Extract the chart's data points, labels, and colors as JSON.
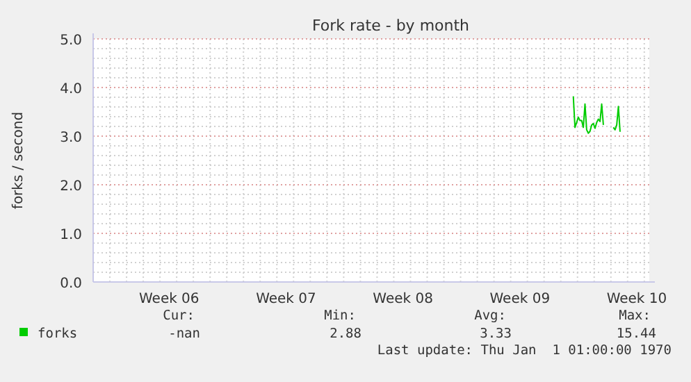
{
  "chart_data": {
    "type": "line",
    "title": "Fork rate - by month",
    "ylabel": "forks / second",
    "ylim": [
      0,
      5
    ],
    "yticks": [
      {
        "value": 0,
        "label": "0.0"
      },
      {
        "value": 0.2,
        "label": null
      },
      {
        "value": 0.4,
        "label": null
      },
      {
        "value": 0.6,
        "label": null
      },
      {
        "value": 0.8,
        "label": null
      },
      {
        "value": 1,
        "label": "1.0"
      },
      {
        "value": 1.2,
        "label": null
      },
      {
        "value": 1.4,
        "label": null
      },
      {
        "value": 1.6,
        "label": null
      },
      {
        "value": 1.8,
        "label": null
      },
      {
        "value": 2,
        "label": "2.0"
      },
      {
        "value": 2.2,
        "label": null
      },
      {
        "value": 2.4,
        "label": null
      },
      {
        "value": 2.6,
        "label": null
      },
      {
        "value": 2.8,
        "label": null
      },
      {
        "value": 3,
        "label": "3.0"
      },
      {
        "value": 3.2,
        "label": null
      },
      {
        "value": 3.4,
        "label": null
      },
      {
        "value": 3.6,
        "label": null
      },
      {
        "value": 3.8,
        "label": null
      },
      {
        "value": 4,
        "label": "4.0"
      },
      {
        "value": 4.2,
        "label": null
      },
      {
        "value": 4.4,
        "label": null
      },
      {
        "value": 4.6,
        "label": null
      },
      {
        "value": 4.8,
        "label": null
      },
      {
        "value": 5,
        "label": "5.0"
      }
    ],
    "grid": true,
    "legend": "bottom left",
    "categories": [
      null,
      null,
      null,
      null,
      null,
      null,
      null,
      null,
      null,
      null,
      null,
      null,
      null,
      null,
      null,
      null,
      null,
      null,
      null,
      null,
      null,
      null,
      null,
      null,
      null,
      null,
      null,
      null,
      null,
      null,
      null,
      null,
      null,
      null,
      null,
      null,
      null,
      null,
      null,
      null,
      null,
      null,
      null,
      null,
      null,
      "Week 06",
      null,
      null,
      null,
      null,
      null,
      null,
      null,
      null,
      null,
      null,
      null,
      null,
      null,
      null,
      null,
      null,
      null,
      null,
      null,
      null,
      null,
      null,
      null,
      null,
      null,
      null,
      null,
      null,
      null,
      null,
      null,
      null,
      null,
      null,
      null,
      null,
      null,
      null,
      null,
      null,
      null,
      null,
      null,
      null,
      null,
      null,
      null,
      null,
      null,
      null,
      null,
      null,
      null,
      null,
      null,
      null,
      null,
      null,
      null,
      null,
      null,
      null,
      null,
      null,
      null,
      null,
      null,
      null,
      null,
      "Week 07",
      null,
      null,
      null,
      null,
      null,
      null,
      null,
      null,
      null,
      null,
      null,
      null,
      null,
      null,
      null,
      null,
      null,
      null,
      null,
      null,
      null,
      null,
      null,
      null,
      null,
      null,
      null,
      null,
      null,
      null,
      null,
      null,
      null,
      null,
      null,
      null,
      null,
      null,
      null,
      null,
      null,
      null,
      null,
      null,
      null,
      null,
      null,
      null,
      null,
      null,
      null,
      null,
      null,
      null,
      null,
      null,
      null,
      null,
      null,
      null,
      null,
      null,
      null,
      null,
      null,
      null,
      null,
      null,
      null,
      "Week 08",
      null,
      null,
      null,
      null,
      null,
      null,
      null,
      null,
      null,
      null,
      null,
      null,
      null,
      null,
      null,
      null,
      null,
      null,
      null,
      null,
      null,
      null,
      null,
      null,
      null,
      null,
      null,
      null,
      null,
      null,
      null,
      null,
      null,
      null,
      null,
      null,
      null,
      null,
      null,
      null,
      null,
      null,
      null,
      null,
      null,
      null,
      null,
      null,
      null,
      null,
      null,
      null,
      null,
      null,
      null,
      null,
      null,
      null,
      null,
      null,
      null,
      null,
      null,
      null,
      null,
      null,
      null,
      null,
      null,
      "Week 09",
      null,
      null,
      null,
      null,
      null,
      null,
      null,
      null,
      null,
      null,
      null,
      null,
      null,
      null,
      null,
      null,
      null,
      null,
      null,
      null,
      null,
      null,
      null,
      null,
      null,
      null,
      null,
      null,
      null,
      null,
      null,
      null,
      null,
      null,
      null,
      null,
      null,
      null,
      null,
      null,
      null,
      null,
      null,
      null,
      null,
      null,
      null,
      null,
      null,
      null,
      null,
      null,
      null,
      null,
      null,
      null,
      null,
      null,
      null,
      null,
      null,
      null,
      null,
      null,
      null,
      null,
      null,
      null,
      null,
      "Week 10",
      null,
      null,
      null,
      null,
      null,
      null,
      null
    ],
    "series": [
      {
        "name": "forks",
        "color": "#00cc00",
        "values": [
          null,
          null,
          null,
          null,
          null,
          null,
          null,
          null,
          null,
          null,
          null,
          null,
          null,
          null,
          null,
          null,
          null,
          null,
          null,
          null,
          null,
          null,
          null,
          null,
          null,
          null,
          null,
          null,
          null,
          null,
          null,
          null,
          null,
          null,
          null,
          null,
          null,
          null,
          null,
          null,
          null,
          null,
          null,
          null,
          null,
          null,
          null,
          null,
          null,
          null,
          null,
          null,
          null,
          null,
          null,
          null,
          null,
          null,
          null,
          null,
          null,
          null,
          null,
          null,
          null,
          null,
          null,
          null,
          null,
          null,
          null,
          null,
          null,
          null,
          null,
          null,
          null,
          null,
          null,
          null,
          null,
          null,
          null,
          null,
          null,
          null,
          null,
          null,
          null,
          null,
          null,
          null,
          null,
          null,
          null,
          null,
          null,
          null,
          null,
          null,
          null,
          null,
          null,
          null,
          null,
          null,
          null,
          null,
          null,
          null,
          null,
          null,
          null,
          null,
          null,
          null,
          null,
          null,
          null,
          null,
          null,
          null,
          null,
          null,
          null,
          null,
          null,
          null,
          null,
          null,
          null,
          null,
          null,
          null,
          null,
          null,
          null,
          null,
          null,
          null,
          null,
          null,
          null,
          null,
          null,
          null,
          null,
          null,
          null,
          null,
          null,
          null,
          null,
          null,
          null,
          null,
          null,
          null,
          null,
          null,
          null,
          null,
          null,
          null,
          null,
          null,
          null,
          null,
          null,
          null,
          null,
          null,
          null,
          null,
          null,
          null,
          null,
          null,
          null,
          null,
          null,
          null,
          null,
          null,
          null,
          null,
          null,
          null,
          null,
          null,
          null,
          null,
          null,
          null,
          null,
          null,
          null,
          null,
          null,
          null,
          null,
          null,
          null,
          null,
          null,
          null,
          null,
          null,
          null,
          null,
          null,
          null,
          null,
          null,
          null,
          null,
          null,
          null,
          null,
          null,
          null,
          null,
          null,
          null,
          null,
          null,
          null,
          null,
          null,
          null,
          null,
          null,
          null,
          null,
          null,
          null,
          null,
          null,
          null,
          null,
          null,
          null,
          null,
          null,
          null,
          null,
          null,
          null,
          null,
          null,
          null,
          null,
          null,
          null,
          null,
          null,
          null,
          null,
          null,
          null,
          null,
          null,
          null,
          null,
          null,
          null,
          null,
          null,
          null,
          null,
          null,
          null,
          null,
          null,
          null,
          null,
          null,
          null,
          null,
          null,
          null,
          null,
          null,
          null,
          null,
          null,
          null,
          3.82,
          3.18,
          3.28,
          3.39,
          3.32,
          3.32,
          3.18,
          3.66,
          3.13,
          3.06,
          3.1,
          3.23,
          3.26,
          3.16,
          3.28,
          3.35,
          3.3,
          3.66,
          3.23,
          null,
          null,
          null,
          null,
          null,
          3.18,
          3.13,
          3.23,
          3.61,
          3.09,
          null,
          null,
          null,
          null,
          null,
          null,
          null,
          null,
          null,
          null,
          null,
          null,
          null,
          null,
          null,
          null,
          null
        ]
      }
    ],
    "annotations": [
      "Cur:",
      "Min:",
      "Avg:",
      "Max:",
      "-nan",
      "2.88",
      "3.33",
      "15.44",
      "Last update: Thu Jan  1 01:00:00 1970"
    ]
  }
}
